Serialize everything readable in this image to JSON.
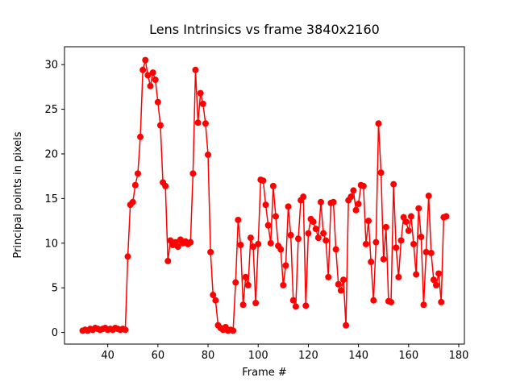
{
  "chart_data": {
    "type": "line",
    "title": "Lens Intrinsics vs frame 3840x2160",
    "xlabel": "Frame #",
    "ylabel": "Principal points in pixels",
    "legend": null,
    "grid": false,
    "line_color": "#ff0000",
    "marker": "circle",
    "marker_color": "#ff0000",
    "xlim": [
      22.75,
      182.25
    ],
    "ylim": [
      -1.3,
      32.0
    ],
    "xticks": [
      40,
      60,
      80,
      100,
      120,
      140,
      160,
      180
    ],
    "yticks": [
      0,
      5,
      10,
      15,
      20,
      25,
      30
    ],
    "x": [
      30,
      31,
      32,
      33,
      34,
      35,
      36,
      37,
      38,
      39,
      40,
      41,
      42,
      43,
      44,
      45,
      46,
      47,
      48,
      49,
      50,
      51,
      52,
      53,
      54,
      55,
      56,
      57,
      58,
      59,
      60,
      61,
      62,
      63,
      64,
      65,
      66,
      67,
      68,
      69,
      70,
      71,
      72,
      73,
      74,
      75,
      76,
      77,
      78,
      79,
      80,
      81,
      82,
      83,
      84,
      85,
      86,
      87,
      88,
      89,
      90,
      91,
      92,
      93,
      94,
      95,
      96,
      97,
      98,
      99,
      100,
      101,
      102,
      103,
      104,
      105,
      106,
      107,
      108,
      109,
      110,
      111,
      112,
      113,
      114,
      115,
      116,
      117,
      118,
      119,
      120,
      121,
      122,
      123,
      124,
      125,
      126,
      127,
      128,
      129,
      130,
      131,
      132,
      133,
      134,
      135,
      136,
      137,
      138,
      139,
      140,
      141,
      142,
      143,
      144,
      145,
      146,
      147,
      148,
      149,
      150,
      151,
      152,
      153,
      154,
      155,
      156,
      157,
      158,
      159,
      160,
      161,
      162,
      163,
      164,
      165,
      166,
      167,
      168,
      169,
      170,
      171,
      172,
      173,
      174,
      175
    ],
    "y": [
      0.2,
      0.3,
      0.2,
      0.4,
      0.3,
      0.5,
      0.4,
      0.3,
      0.4,
      0.5,
      0.3,
      0.4,
      0.3,
      0.5,
      0.4,
      0.3,
      0.4,
      0.3,
      8.5,
      14.3,
      14.6,
      16.5,
      17.8,
      21.9,
      29.4,
      30.5,
      28.8,
      27.6,
      29.1,
      28.3,
      25.8,
      23.2,
      16.8,
      16.4,
      8.0,
      10.3,
      9.8,
      10.1,
      9.6,
      10.4,
      10.0,
      10.2,
      9.9,
      10.1,
      17.8,
      29.4,
      23.5,
      26.8,
      25.6,
      23.4,
      19.9,
      9.0,
      4.2,
      3.6,
      0.8,
      0.5,
      0.3,
      0.6,
      0.2,
      0.3,
      0.2,
      5.6,
      12.6,
      9.8,
      3.1,
      6.2,
      5.3,
      10.6,
      9.6,
      3.3,
      9.9,
      17.1,
      17.0,
      14.3,
      12.0,
      10.0,
      16.4,
      13.0,
      9.7,
      9.3,
      5.3,
      7.5,
      14.1,
      10.9,
      3.6,
      2.9,
      10.5,
      14.8,
      15.2,
      3.0,
      11.1,
      12.7,
      12.4,
      11.6,
      10.6,
      14.6,
      11.1,
      10.3,
      6.2,
      14.5,
      14.6,
      9.3,
      5.4,
      4.7,
      5.9,
      0.8,
      14.8,
      15.2,
      15.9,
      13.7,
      14.4,
      16.5,
      16.4,
      9.9,
      12.5,
      7.9,
      3.6,
      10.1,
      23.4,
      17.9,
      8.2,
      11.8,
      3.5,
      3.4,
      16.6,
      9.5,
      6.2,
      10.3,
      12.9,
      12.4,
      11.4,
      13.0,
      9.9,
      6.5,
      13.9,
      10.7,
      3.1,
      9.0,
      15.3,
      8.9,
      5.9,
      5.3,
      6.6,
      3.4,
      12.9,
      13.0
    ]
  }
}
